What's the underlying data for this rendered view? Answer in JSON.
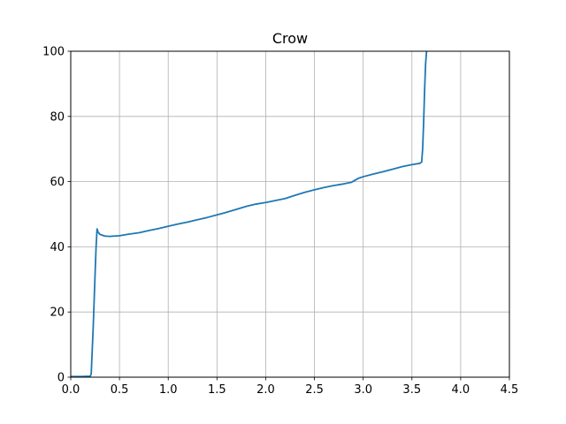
{
  "chart_data": {
    "type": "line",
    "title": "Crow",
    "xlabel": "",
    "ylabel": "",
    "xlim": [
      0.0,
      4.5
    ],
    "ylim": [
      0,
      100
    ],
    "grid": true,
    "xticks": [
      0.0,
      0.5,
      1.0,
      1.5,
      2.0,
      2.5,
      3.0,
      3.5,
      4.0,
      4.5
    ],
    "xtick_labels": [
      "0.0",
      "0.5",
      "1.0",
      "1.5",
      "2.0",
      "2.5",
      "3.0",
      "3.5",
      "4.0",
      "4.5"
    ],
    "yticks": [
      0,
      20,
      40,
      60,
      80,
      100
    ],
    "ytick_labels": [
      "0",
      "20",
      "40",
      "60",
      "80",
      "100"
    ],
    "series": [
      {
        "name": "Crow",
        "color": "#1f77b4",
        "x": [
          0.0,
          0.1,
          0.2,
          0.21,
          0.23,
          0.25,
          0.26,
          0.27,
          0.28,
          0.3,
          0.35,
          0.4,
          0.45,
          0.5,
          0.6,
          0.7,
          0.8,
          0.9,
          1.0,
          1.1,
          1.2,
          1.3,
          1.4,
          1.5,
          1.6,
          1.7,
          1.8,
          1.9,
          2.0,
          2.1,
          2.2,
          2.3,
          2.4,
          2.5,
          2.6,
          2.7,
          2.8,
          2.88,
          2.95,
          3.0,
          3.1,
          3.2,
          3.3,
          3.4,
          3.5,
          3.58,
          3.6,
          3.61,
          3.62,
          3.63,
          3.64,
          3.65
        ],
        "y": [
          0.2,
          0.2,
          0.3,
          1.0,
          15.0,
          32.0,
          40.0,
          45.5,
          44.5,
          43.8,
          43.3,
          43.2,
          43.3,
          43.4,
          43.9,
          44.3,
          45.0,
          45.6,
          46.3,
          47.0,
          47.6,
          48.3,
          49.0,
          49.8,
          50.6,
          51.5,
          52.4,
          53.1,
          53.6,
          54.2,
          54.8,
          55.8,
          56.7,
          57.5,
          58.2,
          58.8,
          59.3,
          59.8,
          61.0,
          61.5,
          62.3,
          63.0,
          63.8,
          64.6,
          65.2,
          65.6,
          66.0,
          70.0,
          78.0,
          88.0,
          96.0,
          100.0
        ]
      }
    ]
  }
}
